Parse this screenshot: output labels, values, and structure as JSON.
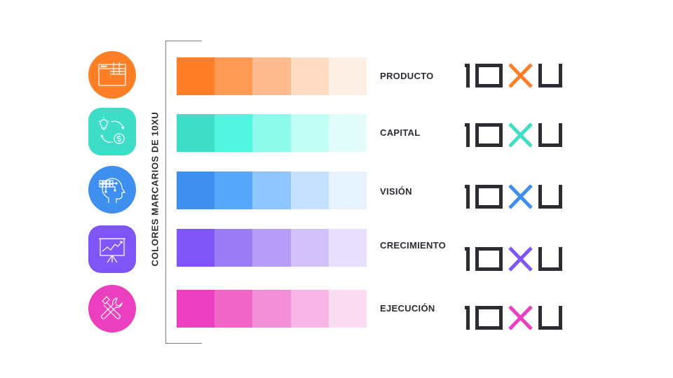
{
  "side_label": "COLORES MARCARIOS DE 10XU",
  "rows": [
    {
      "name": "PRODUCTO",
      "icon": "window-grid-icon",
      "accent": "#ff7f27",
      "swatches": [
        "#ff7f27",
        "#ff9a55",
        "#ffba8d",
        "#ffdcc4",
        "#fff0e6"
      ]
    },
    {
      "name": "CAPITAL",
      "icon": "idea-money-icon",
      "accent": "#3dddc8",
      "swatches": [
        "#3dddc8",
        "#52f6e0",
        "#8cfbea",
        "#c2fdf4",
        "#e3fefa"
      ]
    },
    {
      "name": "VISIÓN",
      "icon": "brain-head-icon",
      "accent": "#3e8ff0",
      "swatches": [
        "#3e8ff0",
        "#57a7fb",
        "#8fc6fd",
        "#c5e1fe",
        "#e6f2fe"
      ]
    },
    {
      "name": "CRECIMIENTO",
      "icon": "presentation-chart-icon",
      "accent": "#8055f6",
      "swatches": [
        "#8055f6",
        "#9c7cf6",
        "#b79cf8",
        "#d0c1fa",
        "#e8e0fd"
      ]
    },
    {
      "name": "EJECUCIÓN",
      "icon": "tools-icon",
      "accent": "#ea3fbe",
      "swatches": [
        "#ea3fbe",
        "#f067c8",
        "#f38fd8",
        "#f7b6e5",
        "#fbdcf2"
      ]
    }
  ],
  "logo": {
    "text": "10XU",
    "base_color": "#2b2d33"
  }
}
